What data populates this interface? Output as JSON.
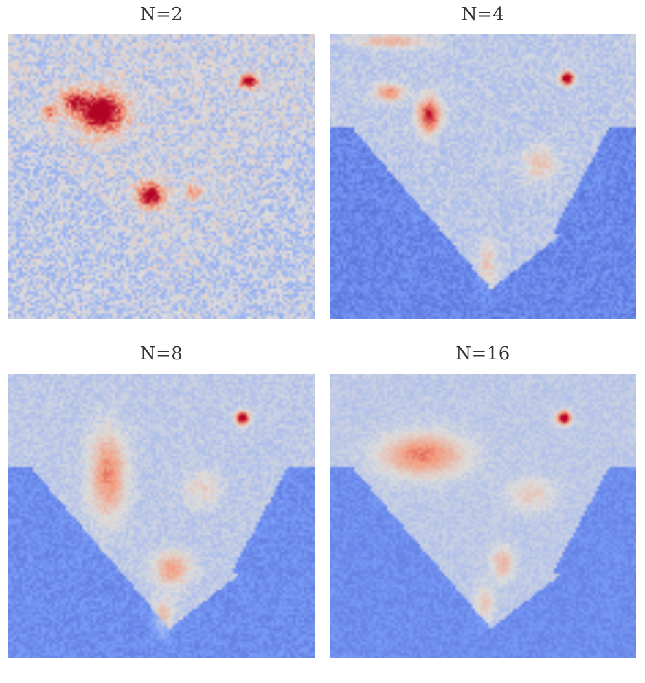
{
  "chart_data": [
    {
      "type": "heatmap",
      "title": "N=2",
      "colormap": "coolwarm",
      "colormap_low": "#5b7fdc",
      "colormap_high": "#b40426",
      "hotspots": [
        {
          "cx": 0.3,
          "cy": 0.27,
          "sx": 0.05,
          "sy": 0.05,
          "a": 1.4
        },
        {
          "cx": 0.21,
          "cy": 0.23,
          "sx": 0.03,
          "sy": 0.03,
          "a": 0.8
        },
        {
          "cx": 0.46,
          "cy": 0.56,
          "sx": 0.03,
          "sy": 0.03,
          "a": 1.3
        },
        {
          "cx": 0.78,
          "cy": 0.16,
          "sx": 0.02,
          "sy": 0.015,
          "a": 1.4
        },
        {
          "cx": 0.13,
          "cy": 0.27,
          "sx": 0.02,
          "sy": 0.02,
          "a": 0.7
        },
        {
          "cx": 0.6,
          "cy": 0.55,
          "sx": 0.02,
          "sy": 0.02,
          "a": 0.5
        }
      ],
      "land_level": 0.45,
      "ocean_level": 0.3,
      "noise": 0.12
    },
    {
      "type": "heatmap",
      "title": "N=4",
      "colormap": "coolwarm",
      "colormap_low": "#5b7fdc",
      "colormap_high": "#b40426",
      "hotspots": [
        {
          "cx": 0.32,
          "cy": 0.28,
          "sx": 0.025,
          "sy": 0.04,
          "a": 1.1
        },
        {
          "cx": 0.19,
          "cy": 0.2,
          "sx": 0.03,
          "sy": 0.02,
          "a": 0.7
        },
        {
          "cx": 0.77,
          "cy": 0.15,
          "sx": 0.015,
          "sy": 0.015,
          "a": 1.5
        },
        {
          "cx": 0.2,
          "cy": 0.02,
          "sx": 0.08,
          "sy": 0.015,
          "a": 0.5
        },
        {
          "cx": 0.68,
          "cy": 0.45,
          "sx": 0.04,
          "sy": 0.04,
          "a": 0.35
        },
        {
          "cx": 0.51,
          "cy": 0.8,
          "sx": 0.02,
          "sy": 0.05,
          "a": 0.35
        }
      ],
      "land_level": 0.42,
      "ocean_level": 0.18,
      "noise": 0.06
    },
    {
      "type": "heatmap",
      "title": "N=8",
      "colormap": "coolwarm",
      "colormap_low": "#5b7fdc",
      "colormap_high": "#b40426",
      "hotspots": [
        {
          "cx": 0.32,
          "cy": 0.35,
          "sx": 0.04,
          "sy": 0.1,
          "a": 0.7
        },
        {
          "cx": 0.53,
          "cy": 0.68,
          "sx": 0.04,
          "sy": 0.04,
          "a": 0.6
        },
        {
          "cx": 0.76,
          "cy": 0.15,
          "sx": 0.015,
          "sy": 0.015,
          "a": 1.5
        },
        {
          "cx": 0.5,
          "cy": 0.85,
          "sx": 0.02,
          "sy": 0.05,
          "a": 0.4
        },
        {
          "cx": 0.63,
          "cy": 0.4,
          "sx": 0.04,
          "sy": 0.04,
          "a": 0.3
        }
      ],
      "land_level": 0.42,
      "ocean_level": 0.2,
      "noise": 0.05
    },
    {
      "type": "heatmap",
      "title": "N=16",
      "colormap": "coolwarm",
      "colormap_low": "#5b7fdc",
      "colormap_high": "#b40426",
      "hotspots": [
        {
          "cx": 0.3,
          "cy": 0.28,
          "sx": 0.09,
          "sy": 0.05,
          "a": 0.75
        },
        {
          "cx": 0.76,
          "cy": 0.15,
          "sx": 0.015,
          "sy": 0.015,
          "a": 1.5
        },
        {
          "cx": 0.56,
          "cy": 0.66,
          "sx": 0.025,
          "sy": 0.04,
          "a": 0.45
        },
        {
          "cx": 0.65,
          "cy": 0.42,
          "sx": 0.05,
          "sy": 0.04,
          "a": 0.3
        },
        {
          "cx": 0.5,
          "cy": 0.8,
          "sx": 0.02,
          "sy": 0.04,
          "a": 0.35
        }
      ],
      "land_level": 0.42,
      "ocean_level": 0.2,
      "noise": 0.04
    }
  ]
}
